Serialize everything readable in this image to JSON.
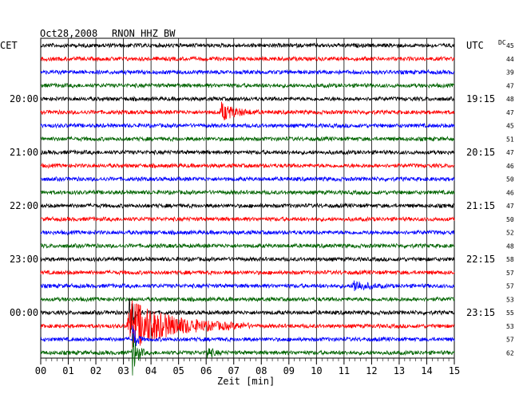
{
  "header": {
    "date": "Oct28,2008",
    "station": "RNON HHZ BW",
    "left_zone": "CET",
    "right_zone": "UTC",
    "dc_label": "DC"
  },
  "chart_data": {
    "type": "line",
    "title": "Oct28,2008 RNON HHZ BW",
    "xlabel": "Zeit [min]",
    "x_ticks": [
      "00",
      "01",
      "02",
      "03",
      "04",
      "05",
      "06",
      "07",
      "08",
      "09",
      "10",
      "11",
      "12",
      "13",
      "14",
      "15"
    ],
    "xlim": [
      0,
      15
    ],
    "grid": true,
    "traces_per_row_minutes": 15,
    "left_time_labels": [
      {
        "label": "20:00",
        "trace_index": 4
      },
      {
        "label": "21:00",
        "trace_index": 8
      },
      {
        "label": "22:00",
        "trace_index": 12
      },
      {
        "label": "23:00",
        "trace_index": 16
      },
      {
        "label": "00:00",
        "trace_index": 20
      }
    ],
    "right_time_labels": [
      {
        "label": "UTC",
        "trace_index": 0
      },
      {
        "label": "19:15",
        "trace_index": 4
      },
      {
        "label": "20:15",
        "trace_index": 8
      },
      {
        "label": "21:15",
        "trace_index": 12
      },
      {
        "label": "22:15",
        "trace_index": 16
      },
      {
        "label": "23:15",
        "trace_index": 20
      }
    ],
    "trace_colors": [
      "#000000",
      "#ff0000",
      "#0000ff",
      "#006400"
    ],
    "dc_offsets": [
      "45",
      "44",
      "39",
      "47",
      "48",
      "47",
      "45",
      "51",
      "47",
      "46",
      "50",
      "46",
      "47",
      "50",
      "52",
      "48",
      "58",
      "57",
      "57",
      "53",
      "55",
      "53",
      "57",
      "62"
    ],
    "events": [
      {
        "trace_index": 5,
        "start_min": 6.5,
        "duration_min": 1.5,
        "peak": 0.35,
        "color_index": 1
      },
      {
        "trace_index": 18,
        "start_min": 11.3,
        "duration_min": 1.2,
        "peak": 0.25,
        "color_index": 2
      },
      {
        "trace_index": 20,
        "start_min": 3.2,
        "duration_min": 0.5,
        "peak": 1.0,
        "color_index": 0
      },
      {
        "trace_index": 21,
        "start_min": 3.1,
        "duration_min": 4.5,
        "peak": 1.0,
        "color_index": 1
      },
      {
        "trace_index": 22,
        "start_min": 3.3,
        "duration_min": 0.4,
        "peak": 0.7,
        "color_index": 2
      },
      {
        "trace_index": 23,
        "start_min": 3.3,
        "duration_min": 0.5,
        "peak": 1.0,
        "color_index": 3
      },
      {
        "trace_index": 23,
        "start_min": 6.0,
        "duration_min": 0.6,
        "peak": 0.25,
        "color_index": 3
      }
    ]
  }
}
